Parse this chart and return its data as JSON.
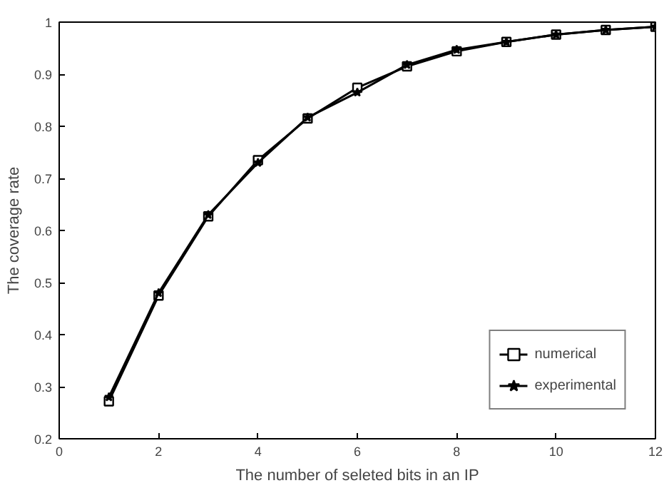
{
  "chart_data": {
    "type": "line",
    "xlabel": "The number of seleted bits in an IP",
    "ylabel": "The coverage rate",
    "x": [
      1,
      2,
      3,
      4,
      5,
      6,
      7,
      8,
      9,
      10,
      11,
      12
    ],
    "series": [
      {
        "name": "numerical",
        "color": "#000000",
        "marker": "square",
        "values": [
          0.272,
          0.475,
          0.627,
          0.735,
          0.815,
          0.874,
          0.915,
          0.944,
          0.962,
          0.976,
          0.985,
          0.991
        ]
      },
      {
        "name": "experimental",
        "color": "#000000",
        "marker": "star",
        "values": [
          0.28,
          0.48,
          0.63,
          0.73,
          0.817,
          0.865,
          0.918,
          0.947,
          0.962,
          0.976,
          0.985,
          0.991
        ]
      }
    ],
    "xlim": [
      0,
      12
    ],
    "ylim": [
      0.2,
      1
    ],
    "xticks": [
      0,
      2,
      4,
      6,
      8,
      10,
      12
    ],
    "yticks": [
      0.2,
      0.3,
      0.4,
      0.5,
      0.6,
      0.7,
      0.8,
      0.9,
      1
    ],
    "legend": "bottom right",
    "line_style": "solid"
  }
}
